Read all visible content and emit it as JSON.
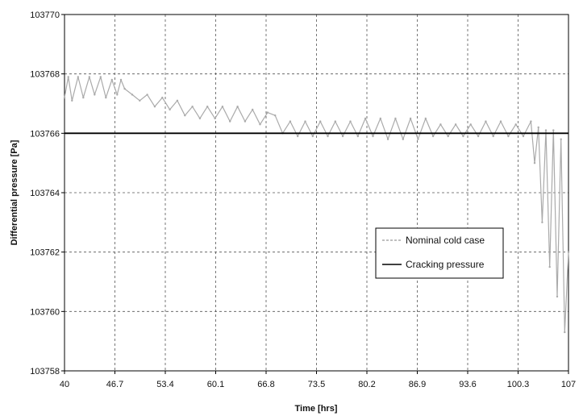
{
  "chart_data": {
    "type": "line",
    "title": "",
    "xlabel": "Time [hrs]",
    "ylabel": "Differential pressure [Pa]",
    "xlim": [
      40,
      107
    ],
    "ylim": [
      103758,
      103770
    ],
    "x_ticks": [
      "40",
      "46.7",
      "53.4",
      "60.1",
      "66.8",
      "73.5",
      "80.2",
      "86.9",
      "93.6",
      "100.3",
      "107"
    ],
    "y_ticks": [
      "103758",
      "103760",
      "103762",
      "103764",
      "103766",
      "103768",
      "103770"
    ],
    "grid": true,
    "legend_position": "center-right",
    "series": [
      {
        "name": "Nominal cold case",
        "color": "#aaaaaa",
        "x": [
          40,
          40.5,
          41,
          41.8,
          42.5,
          43.3,
          44,
          44.8,
          45.5,
          46.3,
          47,
          47.5,
          48,
          49,
          50,
          51,
          52,
          53,
          54,
          55,
          56,
          57,
          58,
          59,
          60,
          61,
          62,
          63,
          64,
          65,
          66,
          67,
          68,
          69,
          70,
          71,
          72,
          73,
          74,
          75,
          76,
          77,
          78,
          79,
          80,
          81,
          82,
          83,
          84,
          85,
          86,
          87,
          88,
          89,
          90,
          91,
          92,
          93,
          94,
          95,
          96,
          97,
          98,
          99,
          100,
          101,
          102,
          102.5,
          103,
          103.5,
          104,
          104.5,
          105,
          105.5,
          106,
          106.5,
          107
        ],
        "y": [
          103767.2,
          103767.9,
          103767.1,
          103767.9,
          103767.2,
          103767.9,
          103767.3,
          103767.9,
          103767.2,
          103767.8,
          103767.3,
          103767.8,
          103767.5,
          103767.3,
          103767.1,
          103767.3,
          103766.9,
          103767.2,
          103766.8,
          103767.1,
          103766.6,
          103766.9,
          103766.5,
          103766.9,
          103766.5,
          103766.9,
          103766.4,
          103766.9,
          103766.4,
          103766.8,
          103766.3,
          103766.7,
          103766.6,
          103766.0,
          103766.4,
          103765.9,
          103766.4,
          103765.9,
          103766.4,
          103765.9,
          103766.4,
          103765.9,
          103766.4,
          103765.9,
          103766.5,
          103765.9,
          103766.5,
          103765.8,
          103766.5,
          103765.8,
          103766.5,
          103765.8,
          103766.5,
          103765.9,
          103766.3,
          103765.9,
          103766.3,
          103765.9,
          103766.3,
          103765.9,
          103766.4,
          103765.9,
          103766.4,
          103765.9,
          103766.3,
          103765.9,
          103766.4,
          103765.0,
          103766.2,
          103763.0,
          103766.1,
          103761.5,
          103766.1,
          103760.5,
          103765.8,
          103759.3,
          103762.0
        ]
      },
      {
        "name": "Cracking pressure",
        "color": "#000000",
        "x": [
          40,
          107
        ],
        "y": [
          103766,
          103766
        ]
      }
    ]
  }
}
